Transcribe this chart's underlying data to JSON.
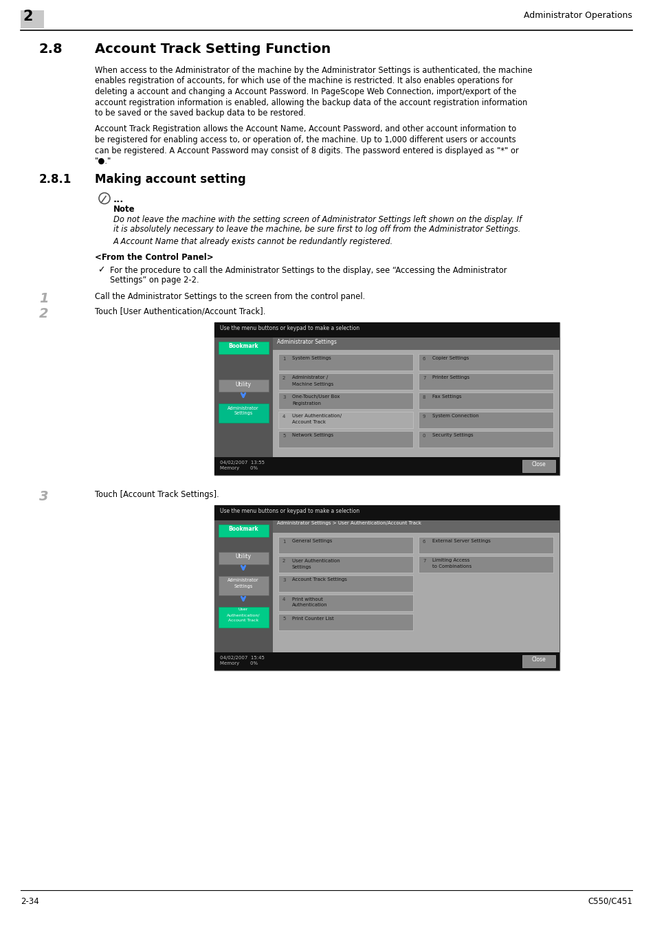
{
  "page_number_left": "2-34",
  "page_number_right": "C550/C451",
  "header_left_number": "2",
  "header_right": "Administrator Operations",
  "section_number": "2.8",
  "section_title": "Account Track Setting Function",
  "para1_lines": [
    "When access to the Administrator of the machine by the Administrator Settings is authenticated, the machine",
    "enables registration of accounts, for which use of the machine is restricted. It also enables operations for",
    "deleting a account and changing a Account Password. In PageScope Web Connection, import/export of the",
    "account registration information is enabled, allowing the backup data of the account registration information",
    "to be saved or the saved backup data to be restored."
  ],
  "para2_lines": [
    "Account Track Registration allows the Account Name, Account Password, and other account information to",
    "be registered for enabling access to, or operation of, the machine. Up to 1,000 different users or accounts",
    "can be registered. A Account Password may consist of 8 digits. The password entered is displayed as \"*\" or",
    "\"●.\""
  ],
  "subsection_number": "2.8.1",
  "subsection_title": "Making account setting",
  "note_label": "Note",
  "note_line1": "Do not leave the machine with the setting screen of Administrator Settings left shown on the display. If",
  "note_line2": "it is absolutely necessary to leave the machine, be sure first to log off from the Administrator Settings.",
  "note_line3": "A Account Name that already exists cannot be redundantly registered.",
  "from_control_panel": "<From the Control Panel>",
  "check_line1": "For the procedure to call the Administrator Settings to the display, see “Accessing the Administrator",
  "check_line2": "Settings” on page 2-2.",
  "step1_text": "Call the Administrator Settings to the screen from the control panel.",
  "step2_text": "Touch [User Authentication/Account Track].",
  "step3_text": "Touch [Account Track Settings].",
  "screen1_items_left": [
    "System Settings",
    "Administrator /\nMachine Settings",
    "One-Touch/User Box\nRegistration",
    "User Authentication/\nAccount Track",
    "Network Settings"
  ],
  "screen1_items_right": [
    "Copier Settings",
    "Printer Settings",
    "Fax Settings",
    "System Connection",
    "Security Settings"
  ],
  "screen1_nums_left": [
    "1",
    "2",
    "3",
    "4",
    "5"
  ],
  "screen1_nums_right": [
    "6",
    "7",
    "8",
    "9",
    "0"
  ],
  "screen1_highlight": 3,
  "screen2_items_left": [
    "General Settings",
    "User Authentication\nSettings",
    "Account Track Settings",
    "Print without\nAuthentication",
    "Print Counter List"
  ],
  "screen2_items_right": [
    "External Server Settings",
    "Limiting Access\nto Combinations",
    null,
    null,
    null
  ],
  "screen2_nums_left": [
    "1",
    "2",
    "3",
    "4",
    "5"
  ],
  "screen2_nums_right": [
    "6",
    "7",
    null,
    null,
    null
  ],
  "screen2_highlight": 2,
  "screen1_time": "04/02/2007  13:55",
  "screen2_time": "04/02/2007  15:45"
}
